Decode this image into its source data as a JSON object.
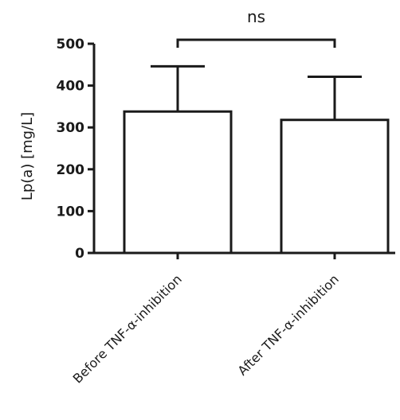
{
  "chart_data": {
    "type": "bar",
    "categories": [
      "Before TNF-α-inhibition",
      "After TNF-α-inhibition"
    ],
    "series": [
      {
        "values": [
          338,
          318
        ],
        "error_upper": [
          446,
          421
        ]
      }
    ],
    "ylabel": "Lp(a) [mg/L]",
    "xlabel": "",
    "ylim": [
      0,
      500
    ],
    "yticks": [
      0,
      100,
      200,
      300,
      400,
      500
    ],
    "ytick_labels": [
      "0",
      "100",
      "200",
      "300",
      "400",
      "500"
    ],
    "grid": false,
    "annotation": {
      "text": "ns",
      "between": [
        0,
        1
      ]
    },
    "colors": {
      "bar_fill": "#ffffff",
      "stroke": "#1a1a1a"
    }
  }
}
